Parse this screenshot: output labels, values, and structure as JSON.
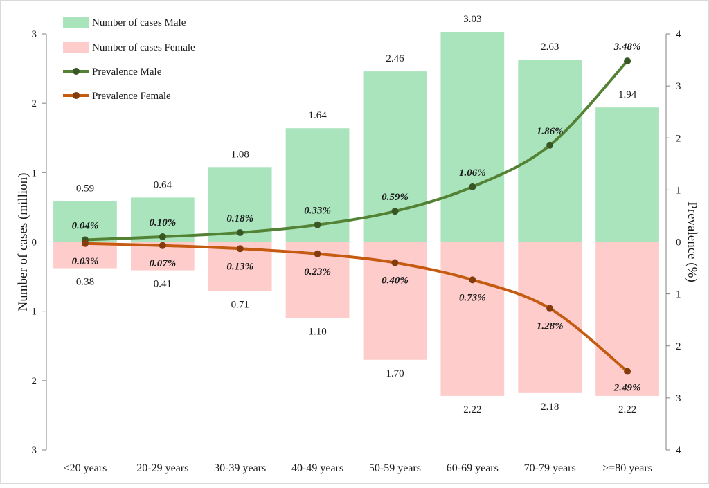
{
  "chart_data": {
    "type": "bar",
    "categories": [
      "<20 years",
      "20-29 years",
      "30-39 years",
      "40-49 years",
      "50-59 years",
      "60-69 years",
      "70-79 years",
      ">=80 years"
    ],
    "series": [
      {
        "name": "Number of cases Male",
        "kind": "bar",
        "axis": "left",
        "direction": "up",
        "color": "#a9e4bd",
        "values": [
          0.59,
          0.64,
          1.08,
          1.64,
          2.46,
          3.03,
          2.63,
          1.94
        ],
        "labels": [
          "0.59",
          "0.64",
          "1.08",
          "1.64",
          "2.46",
          "3.03",
          "2.63",
          "1.94"
        ]
      },
      {
        "name": "Number of cases Female",
        "kind": "bar",
        "axis": "left",
        "direction": "down",
        "color": "#ffcccc",
        "values": [
          0.38,
          0.41,
          0.71,
          1.1,
          1.7,
          2.22,
          2.18,
          2.22
        ],
        "labels": [
          "0.38",
          "0.41",
          "0.71",
          "1.10",
          "1.70",
          "2.22",
          "2.18",
          "2.22"
        ]
      },
      {
        "name": "Prevalence Male",
        "kind": "line",
        "axis": "right",
        "direction": "up",
        "color": "#548235",
        "values": [
          0.04,
          0.1,
          0.18,
          0.33,
          0.59,
          1.06,
          1.86,
          3.48
        ],
        "labels": [
          "0.04%",
          "0.10%",
          "0.18%",
          "0.33%",
          "0.59%",
          "1.06%",
          "1.86%",
          "3.48%"
        ]
      },
      {
        "name": "Prevalence Female",
        "kind": "line",
        "axis": "right",
        "direction": "down",
        "color": "#c55a11",
        "values": [
          0.03,
          0.07,
          0.13,
          0.23,
          0.4,
          0.73,
          1.28,
          2.49
        ],
        "labels": [
          "0.03%",
          "0.07%",
          "0.13%",
          "0.23%",
          "0.40%",
          "0.73%",
          "1.28%",
          "2.49%"
        ]
      }
    ],
    "ylabel": "Number of cases (million)",
    "y2label": "Prevalence (%)",
    "ylim": [
      -3,
      3
    ],
    "y2lim": [
      -4,
      4
    ],
    "yticks": [
      "3",
      "2",
      "1",
      "0",
      "1",
      "2",
      "3"
    ],
    "y2ticks": [
      "4",
      "3",
      "2",
      "1",
      "0",
      "1",
      "2",
      "3",
      "4"
    ],
    "grid": false,
    "legend_position": "top-left"
  }
}
